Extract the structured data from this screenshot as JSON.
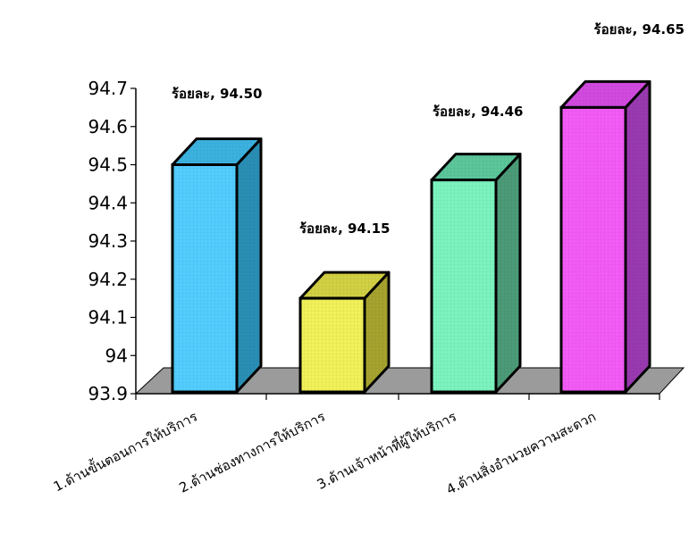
{
  "chart_data": {
    "type": "bar",
    "categories": [
      "1.ด้านขั้นตอนการให้บริการ",
      "2.ด้านช่องทางการให้บริการ",
      "3.ด้านเจ้าหน้าที่ผู้ให้บริการ",
      "4.ด้านสิ่งอำนวยความสะดวก"
    ],
    "values": [
      94.5,
      94.15,
      94.46,
      94.65
    ],
    "data_labels": [
      "ร้อยละ, 94.50",
      "ร้อยละ, 94.15",
      "ร้อยละ, 94.46",
      "ร้อยละ, 94.65"
    ],
    "title": "",
    "xlabel": "",
    "ylabel": "",
    "ylim": [
      93.9,
      94.7
    ],
    "yticks": [
      "93.9",
      "94",
      "94.1",
      "94.2",
      "94.3",
      "94.4",
      "94.5",
      "94.6",
      "94.7"
    ],
    "legend": "none",
    "grid": false,
    "style": "3d-bar",
    "colors": [
      {
        "front": "#53ceff",
        "side": "#2a8fb5",
        "top": "#3cb2e0"
      },
      {
        "front": "#f2f25a",
        "side": "#a6a32f",
        "top": "#d2d043"
      },
      {
        "front": "#7cf4c0",
        "side": "#4c9b78",
        "top": "#5cc79b"
      },
      {
        "front": "#f45cf7",
        "side": "#9a3ab1",
        "top": "#d24ae0"
      }
    ],
    "floor_color": "#9b9b9b"
  }
}
